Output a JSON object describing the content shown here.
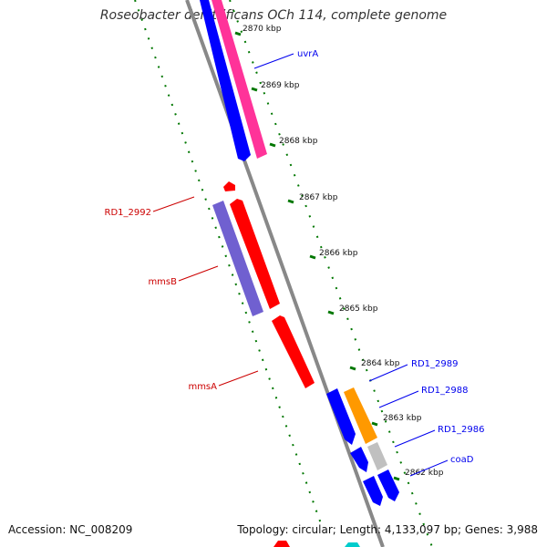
{
  "title": "Roseobacter denitrificans OCh 114, complete genome",
  "footer": {
    "accession": "Accession: NC_008209",
    "topology": "Topology: circular; Length: 4,133,097 bp; Genes: 3,988"
  },
  "ticks": [
    "2870 kbp",
    "2869 kbp",
    "2868 kbp",
    "2867 kbp",
    "2866 kbp",
    "2865 kbp",
    "2864 kbp",
    "2863 kbp",
    "2862 kbp"
  ],
  "genes": [
    {
      "name": "uvrA",
      "strand": "forward",
      "color": "#0000ee"
    },
    {
      "name": "RD1_2992",
      "strand": "reverse",
      "color": "#cc0000"
    },
    {
      "name": "mmsB",
      "strand": "reverse",
      "color": "#cc0000"
    },
    {
      "name": "mmsA",
      "strand": "reverse",
      "color": "#cc0000"
    },
    {
      "name": "RD1_2989",
      "strand": "forward",
      "color": "#0000ee"
    },
    {
      "name": "RD1_2988",
      "strand": "forward",
      "color": "#0000ee"
    },
    {
      "name": "RD1_2986",
      "strand": "forward",
      "color": "#0000ee"
    },
    {
      "name": "coaD",
      "strand": "forward",
      "color": "#0000ee"
    }
  ],
  "colors": {
    "backbone": "#888888",
    "forward_cds": "#0000ff",
    "reverse_cds": "#ff0000",
    "cog_pink": "#ff3399",
    "cog_purple": "#7060d0",
    "cog_orange": "#ff9900",
    "cog_gray": "#c0c0c0",
    "gc_dots": "#007700"
  }
}
